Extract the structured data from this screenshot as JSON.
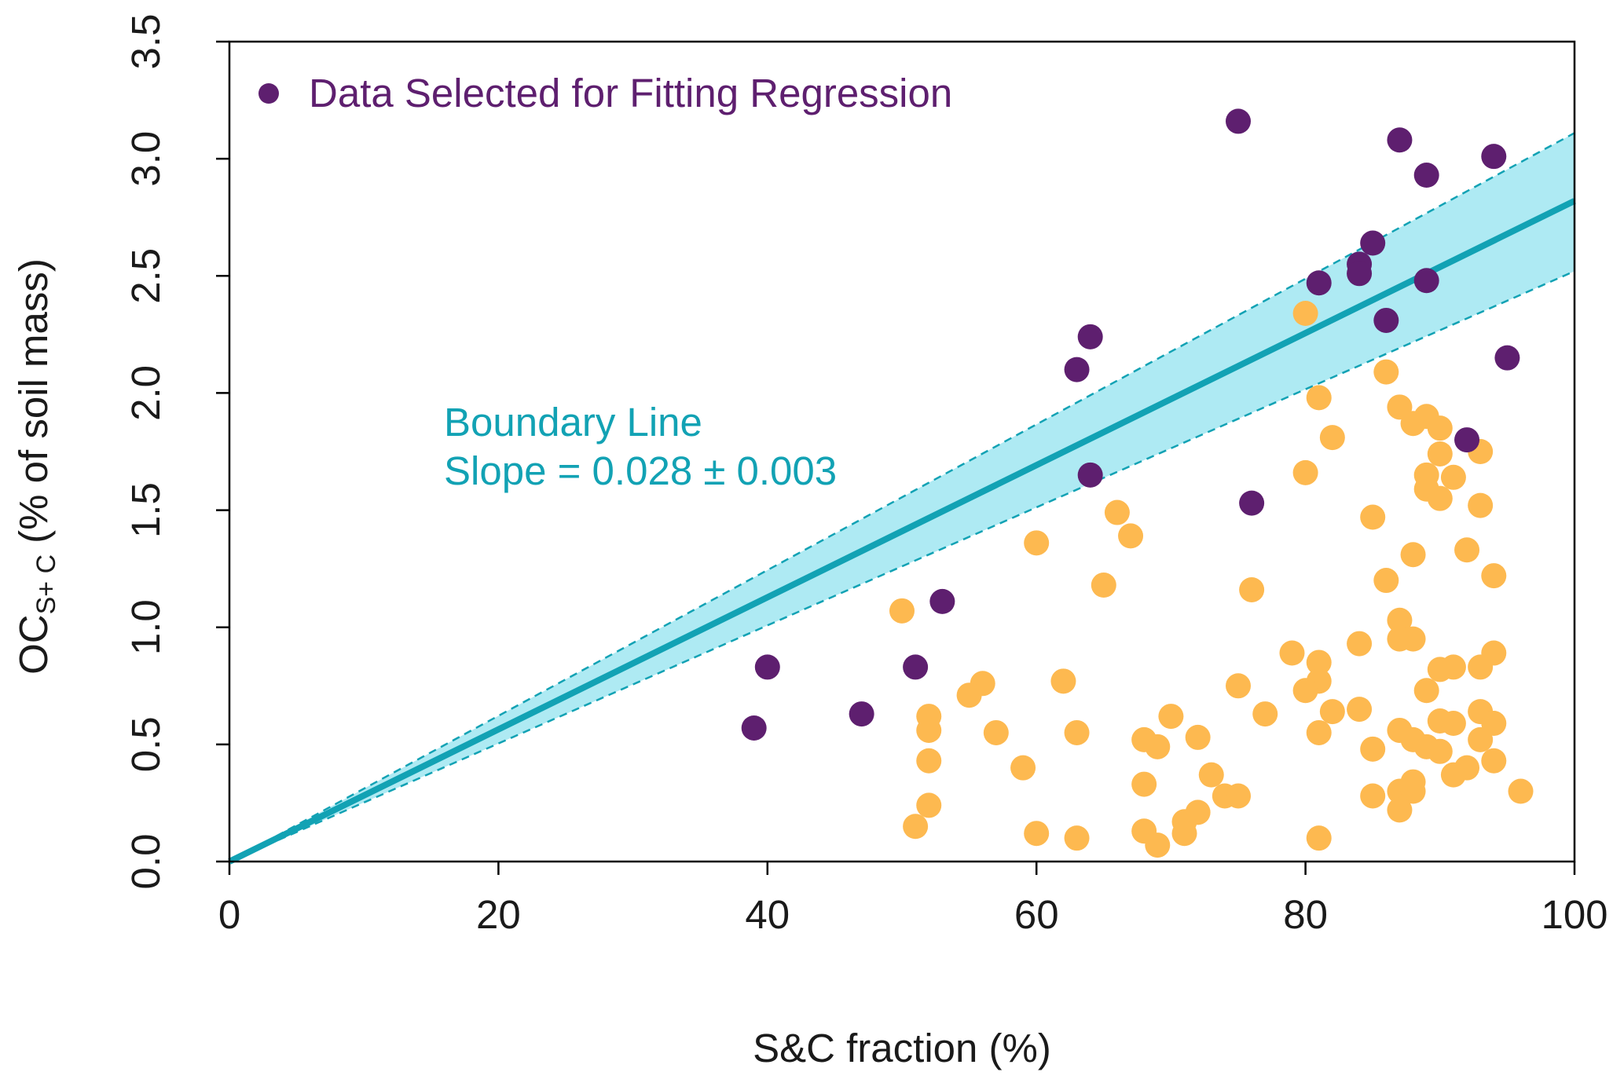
{
  "chart_data": {
    "type": "scatter",
    "x_label": "S&C fraction (%)",
    "y_label": "OC",
    "y_label_sub": "S+ C",
    "y_label_rest": "(% of soil mass)",
    "annotation": [
      "Boundary Line",
      "Slope = 0.028 ± 0.003"
    ],
    "annotation_color": "#12a2b4",
    "xlim": [
      0,
      100
    ],
    "xticks": [
      0,
      20,
      40,
      60,
      80,
      100
    ],
    "ylim": [
      0,
      3.5
    ],
    "yticks": [
      {
        "value": 0,
        "label": "0.0"
      },
      0.5,
      {
        "value": 1,
        "label": "1.0"
      },
      1.5,
      {
        "value": 2,
        "label": "2.0"
      },
      2.5,
      {
        "value": 3,
        "label": "3.0"
      },
      3.5
    ],
    "legend": "top-left",
    "band": {
      "x": [
        0,
        100
      ],
      "upper": [
        0,
        3.11
      ],
      "lower": [
        0,
        2.52
      ],
      "color": "#aeeaf3",
      "edge_color": "#12a2b4"
    },
    "fit": {
      "x": [
        0,
        100
      ],
      "values": [
        0,
        2.82
      ],
      "color": "#12a2b4"
    },
    "series": [
      {
        "name": "Data Selected for Fitting Regression",
        "color": "#5e1f6f",
        "x": [
          75,
          87,
          94,
          89,
          85,
          84,
          84,
          81,
          89,
          86,
          64,
          63,
          95,
          92,
          64,
          76,
          53,
          40,
          51,
          47,
          39
        ],
        "values": [
          3.16,
          3.08,
          3.01,
          2.93,
          2.64,
          2.55,
          2.51,
          2.47,
          2.48,
          2.31,
          2.24,
          2.1,
          2.15,
          1.8,
          1.65,
          1.53,
          1.11,
          0.83,
          0.83,
          0.63,
          0.57
        ]
      },
      {
        "color": "#fdb950",
        "x": [
          80,
          86,
          87,
          81,
          88,
          89,
          90,
          82,
          90,
          91,
          93,
          80,
          89,
          89,
          90,
          93,
          66,
          85,
          67,
          60,
          92,
          88,
          94,
          86,
          65,
          76,
          50,
          87,
          87,
          88,
          84,
          79,
          94,
          81,
          90,
          91,
          93,
          81,
          62,
          56,
          80,
          89,
          75,
          55,
          77,
          82,
          84,
          70,
          52,
          93,
          90,
          91,
          94,
          52,
          57,
          63,
          81,
          87,
          88,
          93,
          68,
          72,
          69,
          89,
          90,
          85,
          52,
          94,
          59,
          92,
          91,
          73,
          88,
          68,
          96,
          87,
          88,
          74,
          75,
          85,
          52,
          72,
          87,
          71,
          51,
          68,
          71,
          60,
          63,
          81,
          69
        ],
        "values": [
          2.34,
          2.09,
          1.94,
          1.98,
          1.87,
          1.9,
          1.85,
          1.81,
          1.74,
          1.64,
          1.75,
          1.66,
          1.65,
          1.59,
          1.55,
          1.52,
          1.49,
          1.47,
          1.39,
          1.36,
          1.33,
          1.31,
          1.22,
          1.2,
          1.18,
          1.16,
          1.07,
          1.03,
          0.95,
          0.95,
          0.93,
          0.89,
          0.89,
          0.85,
          0.82,
          0.83,
          0.83,
          0.77,
          0.77,
          0.76,
          0.73,
          0.73,
          0.75,
          0.71,
          0.63,
          0.64,
          0.65,
          0.62,
          0.62,
          0.64,
          0.6,
          0.59,
          0.59,
          0.56,
          0.55,
          0.55,
          0.55,
          0.56,
          0.52,
          0.52,
          0.52,
          0.53,
          0.49,
          0.49,
          0.47,
          0.48,
          0.43,
          0.43,
          0.4,
          0.4,
          0.37,
          0.37,
          0.34,
          0.33,
          0.3,
          0.3,
          0.3,
          0.28,
          0.28,
          0.28,
          0.24,
          0.21,
          0.22,
          0.17,
          0.15,
          0.13,
          0.12,
          0.12,
          0.1,
          0.1,
          0.07
        ]
      }
    ]
  }
}
